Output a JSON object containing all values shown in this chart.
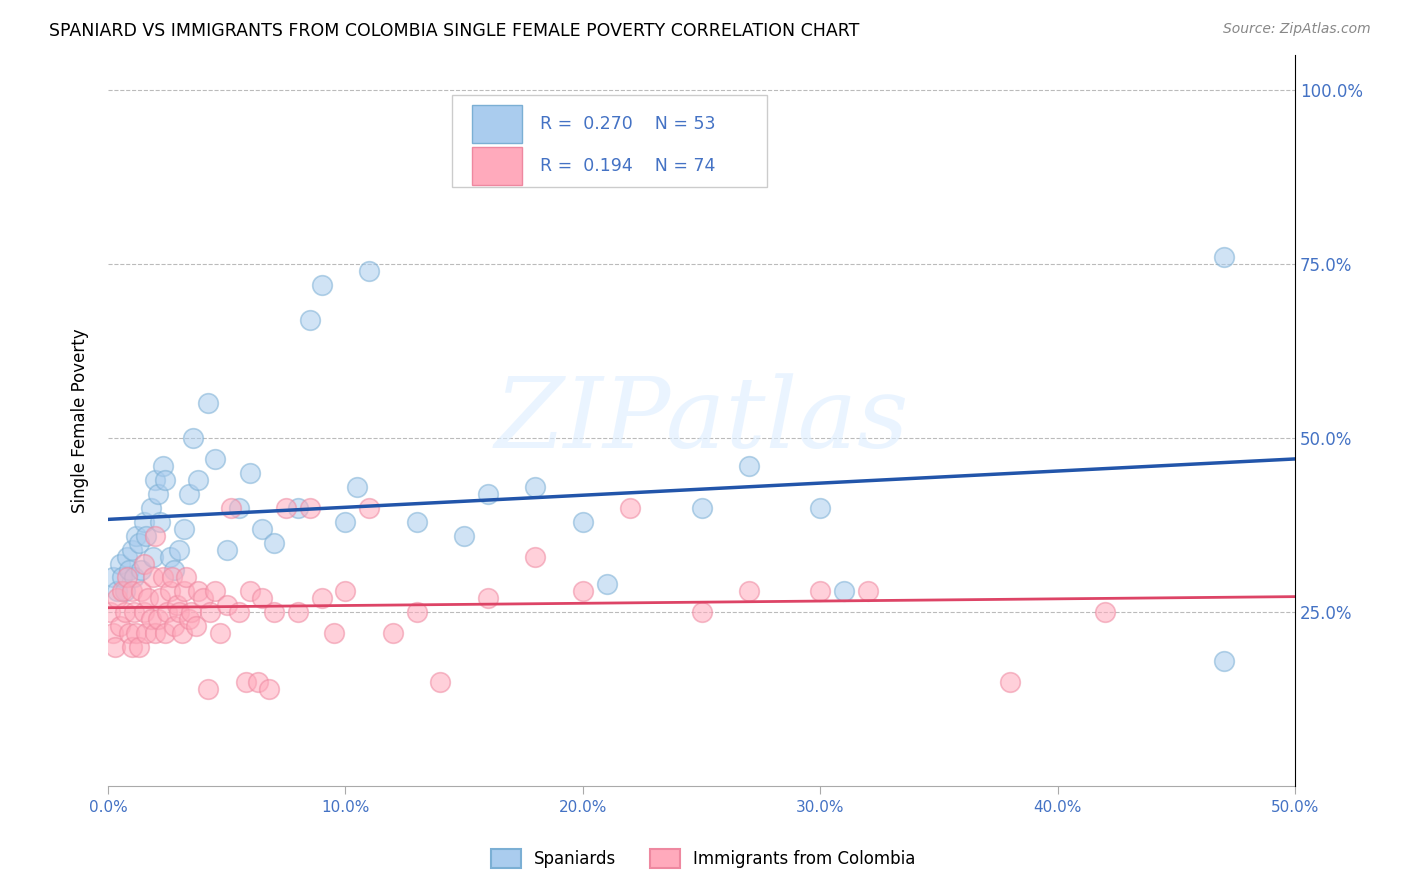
{
  "title": "SPANIARD VS IMMIGRANTS FROM COLOMBIA SINGLE FEMALE POVERTY CORRELATION CHART",
  "source": "Source: ZipAtlas.com",
  "ylabel": "Single Female Poverty",
  "xlim": [
    0.0,
    0.5
  ],
  "ylim": [
    0.0,
    1.05
  ],
  "blue_face": "#aaccee",
  "blue_edge": "#7bafd4",
  "pink_face": "#ffaabc",
  "pink_edge": "#ee88a0",
  "blue_line": "#2255aa",
  "pink_line": "#dd4466",
  "watermark": "ZIPatlas",
  "sp_x": [
    0.002,
    0.004,
    0.005,
    0.006,
    0.007,
    0.008,
    0.009,
    0.01,
    0.011,
    0.012,
    0.013,
    0.014,
    0.015,
    0.016,
    0.018,
    0.019,
    0.02,
    0.021,
    0.022,
    0.023,
    0.024,
    0.026,
    0.028,
    0.03,
    0.032,
    0.034,
    0.036,
    0.038,
    0.042,
    0.045,
    0.05,
    0.055,
    0.06,
    0.065,
    0.07,
    0.08,
    0.085,
    0.09,
    0.1,
    0.105,
    0.11,
    0.13,
    0.15,
    0.16,
    0.18,
    0.2,
    0.21,
    0.25,
    0.27,
    0.3,
    0.31,
    0.47,
    0.47
  ],
  "sp_y": [
    0.3,
    0.28,
    0.32,
    0.3,
    0.28,
    0.33,
    0.31,
    0.34,
    0.3,
    0.36,
    0.35,
    0.31,
    0.38,
    0.36,
    0.4,
    0.33,
    0.44,
    0.42,
    0.38,
    0.46,
    0.44,
    0.33,
    0.31,
    0.34,
    0.37,
    0.42,
    0.5,
    0.44,
    0.55,
    0.47,
    0.34,
    0.4,
    0.45,
    0.37,
    0.35,
    0.4,
    0.67,
    0.72,
    0.38,
    0.43,
    0.74,
    0.38,
    0.36,
    0.42,
    0.43,
    0.38,
    0.29,
    0.4,
    0.46,
    0.4,
    0.28,
    0.18,
    0.76
  ],
  "co_x": [
    0.001,
    0.002,
    0.003,
    0.004,
    0.005,
    0.006,
    0.007,
    0.008,
    0.009,
    0.01,
    0.01,
    0.011,
    0.012,
    0.013,
    0.014,
    0.015,
    0.015,
    0.016,
    0.017,
    0.018,
    0.019,
    0.02,
    0.02,
    0.021,
    0.022,
    0.023,
    0.024,
    0.025,
    0.026,
    0.027,
    0.028,
    0.029,
    0.03,
    0.031,
    0.032,
    0.033,
    0.034,
    0.035,
    0.037,
    0.038,
    0.04,
    0.042,
    0.043,
    0.045,
    0.047,
    0.05,
    0.052,
    0.055,
    0.058,
    0.06,
    0.063,
    0.065,
    0.068,
    0.07,
    0.075,
    0.08,
    0.085,
    0.09,
    0.095,
    0.1,
    0.11,
    0.12,
    0.13,
    0.14,
    0.16,
    0.18,
    0.2,
    0.22,
    0.25,
    0.27,
    0.3,
    0.32,
    0.38,
    0.42
  ],
  "co_y": [
    0.25,
    0.22,
    0.2,
    0.27,
    0.23,
    0.28,
    0.25,
    0.3,
    0.22,
    0.28,
    0.2,
    0.25,
    0.22,
    0.2,
    0.28,
    0.32,
    0.25,
    0.22,
    0.27,
    0.24,
    0.3,
    0.22,
    0.36,
    0.24,
    0.27,
    0.3,
    0.22,
    0.25,
    0.28,
    0.3,
    0.23,
    0.26,
    0.25,
    0.22,
    0.28,
    0.3,
    0.24,
    0.25,
    0.23,
    0.28,
    0.27,
    0.14,
    0.25,
    0.28,
    0.22,
    0.26,
    0.4,
    0.25,
    0.15,
    0.28,
    0.15,
    0.27,
    0.14,
    0.25,
    0.4,
    0.25,
    0.4,
    0.27,
    0.22,
    0.28,
    0.4,
    0.22,
    0.25,
    0.15,
    0.27,
    0.33,
    0.28,
    0.4,
    0.25,
    0.28,
    0.28,
    0.28,
    0.15,
    0.25
  ]
}
